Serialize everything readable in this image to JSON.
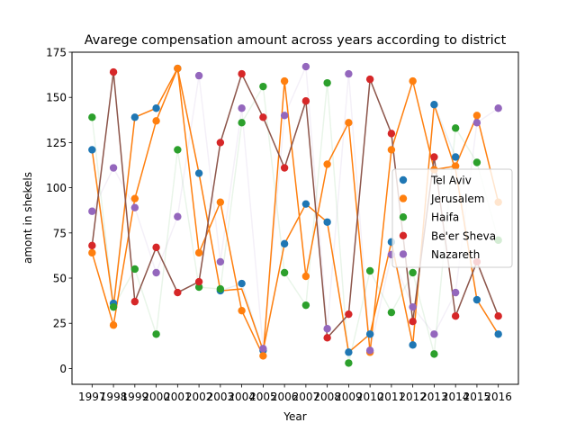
{
  "chart_data": {
    "type": "scatter",
    "title": "Avarege compensation amount across years according to district",
    "xlabel": "Year",
    "ylabel": "amont in shekels",
    "x": [
      1997,
      1998,
      1999,
      2000,
      2001,
      2002,
      2003,
      2004,
      2005,
      2006,
      2007,
      2008,
      2009,
      2010,
      2011,
      2012,
      2013,
      2014,
      2015,
      2016
    ],
    "xticks": [
      "1997",
      "1998",
      "1999",
      "2000",
      "2001",
      "2002",
      "2003",
      "2004",
      "2005",
      "2006",
      "2007",
      "2008",
      "2009",
      "2010",
      "2011",
      "2012",
      "2013",
      "2014",
      "2015",
      "2016"
    ],
    "ylim": [
      -8.75,
      175
    ],
    "yticks": [
      0,
      25,
      50,
      75,
      100,
      125,
      150,
      175
    ],
    "yticklabels": [
      "0",
      "25",
      "50",
      "75",
      "100",
      "125",
      "150",
      "175"
    ],
    "grid": false,
    "legend_position": "center-right",
    "series": [
      {
        "name": "Tel Aviv",
        "color": "#1f77b4",
        "line": "faint",
        "values": [
          121,
          36,
          139,
          144,
          166,
          108,
          43,
          47,
          10,
          69,
          91,
          81,
          9,
          19,
          70,
          13,
          146,
          117,
          38,
          19
        ]
      },
      {
        "name": "Jerusalem",
        "color": "#ff7f0e",
        "line": "solid",
        "values": [
          64,
          24,
          94,
          137,
          166,
          64,
          92,
          32,
          7,
          159,
          51,
          113,
          136,
          9,
          121,
          159,
          110,
          112,
          140,
          92
        ]
      },
      {
        "name": "Haifa",
        "color": "#2ca02c",
        "line": "faint",
        "values": [
          139,
          34,
          55,
          19,
          121,
          45,
          44,
          136,
          156,
          53,
          35,
          158,
          3,
          54,
          31,
          53,
          8,
          133,
          114,
          71
        ]
      },
      {
        "name": "Be'er Sheva",
        "color": "#d62728",
        "line": "faint",
        "values": [
          68,
          164,
          37,
          67,
          42,
          48,
          125,
          163,
          139,
          111,
          148,
          17,
          30,
          160,
          130,
          26,
          117,
          29,
          59,
          29
        ]
      },
      {
        "name": "Nazareth",
        "color": "#9467bd",
        "line": "faint",
        "values": [
          87,
          111,
          89,
          53,
          84,
          162,
          59,
          144,
          11,
          140,
          167,
          22,
          163,
          10,
          63,
          34,
          19,
          42,
          136,
          144
        ]
      }
    ],
    "connector_lines": [
      {
        "color": "#ff7f0e",
        "values": [
          121,
          34,
          139,
          144,
          166,
          108,
          43,
          44,
          10,
          69,
          91,
          81,
          9,
          19,
          70,
          13,
          146,
          110,
          38,
          19
        ]
      },
      {
        "color": "#8c564b",
        "values": [
          68,
          164,
          37,
          67,
          42,
          48,
          125,
          163,
          139,
          111,
          148,
          17,
          30,
          160,
          130,
          26,
          117,
          29,
          59,
          29
        ]
      }
    ]
  }
}
